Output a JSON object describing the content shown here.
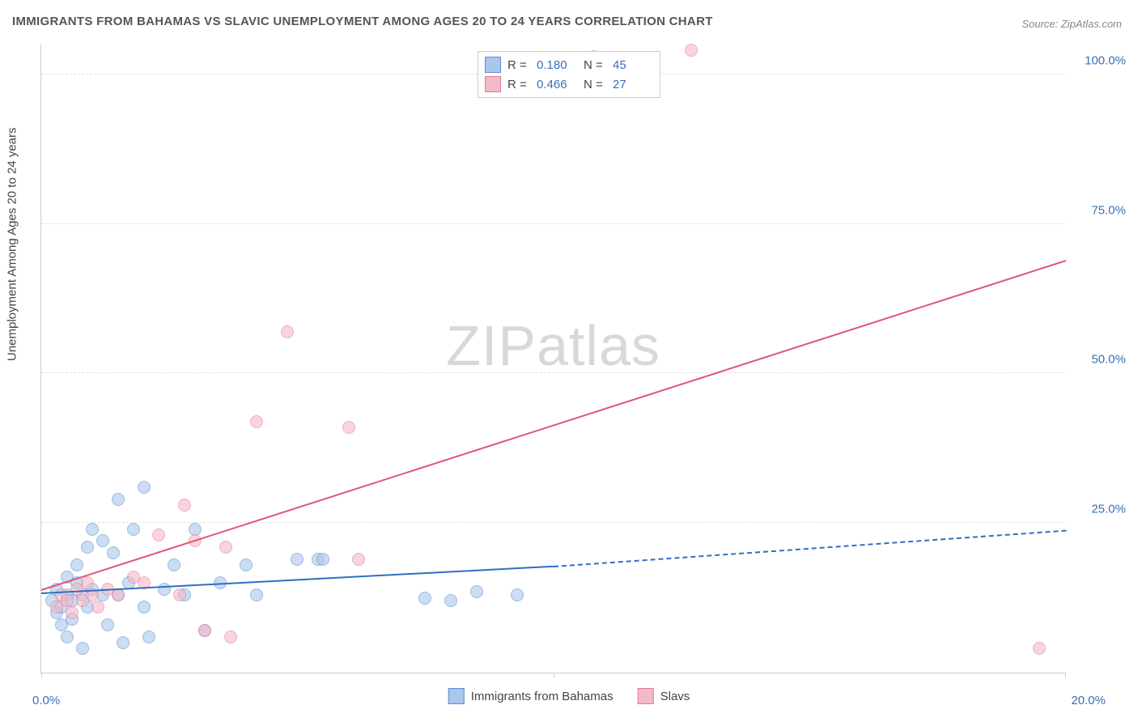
{
  "title": "IMMIGRANTS FROM BAHAMAS VS SLAVIC UNEMPLOYMENT AMONG AGES 20 TO 24 YEARS CORRELATION CHART",
  "source": "Source: ZipAtlas.com",
  "ylabel": "Unemployment Among Ages 20 to 24 years",
  "watermark_part1": "ZIP",
  "watermark_part2": "atlas",
  "chart": {
    "type": "scatter",
    "xlim": [
      0,
      20
    ],
    "ylim": [
      0,
      105
    ],
    "x_min_label": "0.0%",
    "x_max_label": "20.0%",
    "y_ticks": [
      25.0,
      50.0,
      75.0,
      100.0
    ],
    "y_tick_labels": [
      "25.0%",
      "50.0%",
      "75.0%",
      "100.0%"
    ],
    "x_tick_positions": [
      0,
      10,
      20
    ],
    "background_color": "#ffffff",
    "grid_color": "#e0e0e0",
    "axis_color": "#cccccc",
    "tick_label_color": "#3a6fb7",
    "text_color": "#444444",
    "point_radius": 8,
    "point_opacity": 0.6,
    "series": [
      {
        "name": "Immigrants from Bahamas",
        "color_fill": "#a9c7ea",
        "color_stroke": "#5a8fd0",
        "R": "0.180",
        "N": "45",
        "trend": {
          "x1": 0,
          "y1": 13.5,
          "x2": 10,
          "y2": 18.0,
          "x2_ext": 20,
          "y2_ext": 24.0,
          "solid_to": 10,
          "color": "#2f6fc2",
          "width": 2.5
        },
        "points": [
          [
            0.2,
            12
          ],
          [
            0.3,
            10
          ],
          [
            0.3,
            14
          ],
          [
            0.4,
            8
          ],
          [
            0.4,
            11
          ],
          [
            0.5,
            13
          ],
          [
            0.5,
            16
          ],
          [
            0.5,
            6
          ],
          [
            0.6,
            12
          ],
          [
            0.6,
            9
          ],
          [
            0.7,
            15
          ],
          [
            0.7,
            18
          ],
          [
            0.8,
            4
          ],
          [
            0.8,
            13
          ],
          [
            0.9,
            11
          ],
          [
            0.9,
            21
          ],
          [
            1.0,
            14
          ],
          [
            1.0,
            24
          ],
          [
            1.2,
            13
          ],
          [
            1.2,
            22
          ],
          [
            1.3,
            8
          ],
          [
            1.4,
            20
          ],
          [
            1.5,
            29
          ],
          [
            1.5,
            13
          ],
          [
            1.6,
            5
          ],
          [
            1.7,
            15
          ],
          [
            1.8,
            24
          ],
          [
            2.0,
            31
          ],
          [
            2.0,
            11
          ],
          [
            2.1,
            6
          ],
          [
            2.4,
            14
          ],
          [
            2.6,
            18
          ],
          [
            2.8,
            13
          ],
          [
            3.0,
            24
          ],
          [
            3.2,
            7
          ],
          [
            3.5,
            15
          ],
          [
            4.0,
            18
          ],
          [
            4.2,
            13
          ],
          [
            5.0,
            19
          ],
          [
            5.4,
            19
          ],
          [
            5.5,
            19
          ],
          [
            7.5,
            12.5
          ],
          [
            8.0,
            12
          ],
          [
            8.5,
            13.5
          ],
          [
            9.3,
            13
          ]
        ]
      },
      {
        "name": "Slavs",
        "color_fill": "#f4b9c7",
        "color_stroke": "#e77a97",
        "R": "0.466",
        "N": "27",
        "trend": {
          "x1": 0,
          "y1": 14,
          "x2": 20,
          "y2": 69,
          "solid_to": 20,
          "color": "#e25578",
          "width": 2.5
        },
        "points": [
          [
            0.3,
            11
          ],
          [
            0.4,
            13
          ],
          [
            0.5,
            12
          ],
          [
            0.6,
            10
          ],
          [
            0.7,
            14
          ],
          [
            0.8,
            12
          ],
          [
            0.9,
            15
          ],
          [
            1.0,
            13
          ],
          [
            1.1,
            11
          ],
          [
            1.3,
            14
          ],
          [
            1.5,
            13
          ],
          [
            1.8,
            16
          ],
          [
            2.0,
            15
          ],
          [
            2.3,
            23
          ],
          [
            2.7,
            13
          ],
          [
            2.8,
            28
          ],
          [
            3.0,
            22
          ],
          [
            3.2,
            7
          ],
          [
            3.6,
            21
          ],
          [
            3.7,
            6
          ],
          [
            4.2,
            42
          ],
          [
            4.8,
            57
          ],
          [
            6.0,
            41
          ],
          [
            6.2,
            19
          ],
          [
            10.8,
            103
          ],
          [
            12.7,
            104
          ],
          [
            19.5,
            4
          ]
        ]
      }
    ]
  },
  "legend_top": {
    "r_label": "R =",
    "n_label": "N ="
  },
  "legend_bottom_labels": [
    "Immigrants from Bahamas",
    "Slavs"
  ]
}
